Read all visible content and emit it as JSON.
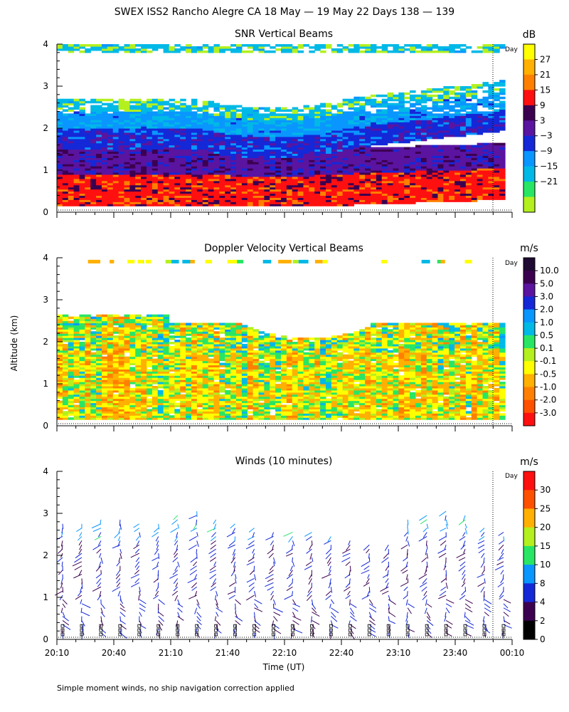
{
  "figure": {
    "title": "SWEX ISS2 Rancho Alegre CA  18 May — 19 May 22 Days 138 — 139",
    "ylabel": "Altitude (km)",
    "xlabel": "Time (UT)",
    "day_marker_label": "Day",
    "footnote": "Simple moment winds, no ship navigation correction applied"
  },
  "chart_data": [
    {
      "type": "heatmap",
      "title": "SNR Vertical Beams",
      "units": "dB",
      "ylabel": "Altitude (km)",
      "ylim": [
        0,
        4
      ],
      "yticks": [
        "0",
        "1",
        "2",
        "3",
        "4"
      ],
      "xlim_hours": [
        20.1667,
        24.1667
      ],
      "colorbar": {
        "labels": [
          "27",
          "21",
          "15",
          "9",
          "3",
          "−3",
          "−9",
          "−15",
          "−21"
        ],
        "values": [
          27,
          21,
          15,
          9,
          3,
          -3,
          -9,
          -15,
          -21
        ],
        "colors": [
          "#ffff00",
          "#ffb000",
          "#ff8000",
          "#ff1010",
          "#3c0050",
          "#5a14a0",
          "#1428d8",
          "#0a96ff",
          "#00b9e6",
          "#28e664",
          "#b4f01e"
        ]
      },
      "profile_bands": [
        {
          "from_km": 0.15,
          "to_km": 0.9,
          "value_db": 12
        },
        {
          "from_km": 0.9,
          "to_km": 1.5,
          "value_db": 0
        },
        {
          "from_km": 1.5,
          "to_km": 2.0,
          "value_db": -6
        },
        {
          "from_km": 2.0,
          "to_km": 2.4,
          "value_db": -13
        },
        {
          "from_km": 2.4,
          "to_km": 2.7,
          "value_db": -19
        },
        {
          "from_km": 3.8,
          "to_km": 4.0,
          "value_db": -19
        }
      ]
    },
    {
      "type": "heatmap",
      "title": "Doppler Velocity Vertical Beams",
      "units": "m/s",
      "ylabel": "Altitude (km)",
      "ylim": [
        0,
        4
      ],
      "yticks": [
        "0",
        "1",
        "2",
        "3",
        "4"
      ],
      "xlim_hours": [
        20.1667,
        24.1667
      ],
      "colorbar": {
        "labels": [
          "10.0",
          "5.0",
          "3.0",
          "2.0",
          "1.0",
          "0.5",
          "0.1",
          "-0.1",
          "-0.5",
          "-1.0",
          "-2.0",
          "-3.0"
        ],
        "values": [
          10,
          5,
          3,
          2,
          1,
          0.5,
          0.1,
          -0.1,
          -0.5,
          -1,
          -2,
          -3
        ],
        "colors": [
          "#1e0a32",
          "#3c0050",
          "#5a14a0",
          "#1428d8",
          "#0a96ff",
          "#00b9e6",
          "#28e664",
          "#b4f01e",
          "#ffff00",
          "#ffb000",
          "#ff8000",
          "#ff5000",
          "#ff1010"
        ]
      },
      "typical_value_ms": -0.4
    },
    {
      "type": "scatter",
      "title": "Winds (10 minutes)",
      "units": "m/s",
      "ylabel": "Altitude (km)",
      "xlabel": "Time (UT)",
      "ylim": [
        0,
        4
      ],
      "yticks": [
        "0",
        "1",
        "2",
        "3",
        "4"
      ],
      "xlim_hours": [
        20.1667,
        24.1667
      ],
      "xticks": [
        "20:10",
        "20:40",
        "21:10",
        "21:40",
        "22:10",
        "22:40",
        "23:10",
        "23:40",
        "00:10"
      ],
      "colorbar": {
        "labels": [
          "30",
          "25",
          "20",
          "15",
          "10",
          "8",
          "4",
          "2",
          "0"
        ],
        "values": [
          30,
          25,
          20,
          15,
          10,
          8,
          4,
          2,
          0
        ],
        "colors": [
          "#ff1010",
          "#ff5000",
          "#ffb000",
          "#b4f01e",
          "#28e664",
          "#0a96ff",
          "#1428d8",
          "#3c0050",
          "#000000"
        ]
      },
      "profile_times": [
        "20:10",
        "20:20",
        "20:30",
        "20:40",
        "20:50",
        "21:00",
        "21:10",
        "21:20",
        "21:30",
        "21:40",
        "21:50",
        "22:00",
        "22:10",
        "22:20",
        "22:30",
        "22:40",
        "22:50",
        "23:00",
        "23:10",
        "23:20",
        "23:30",
        "23:40",
        "23:50",
        "24:00"
      ],
      "profile_top_km": [
        2.8,
        2.8,
        2.9,
        2.9,
        2.8,
        2.8,
        3.0,
        3.1,
        2.9,
        2.8,
        2.7,
        2.6,
        2.6,
        2.6,
        2.5,
        2.4,
        2.3,
        2.3,
        2.9,
        3.0,
        3.1,
        3.0,
        2.7,
        2.6
      ],
      "typical_speed_ms": 4
    }
  ]
}
